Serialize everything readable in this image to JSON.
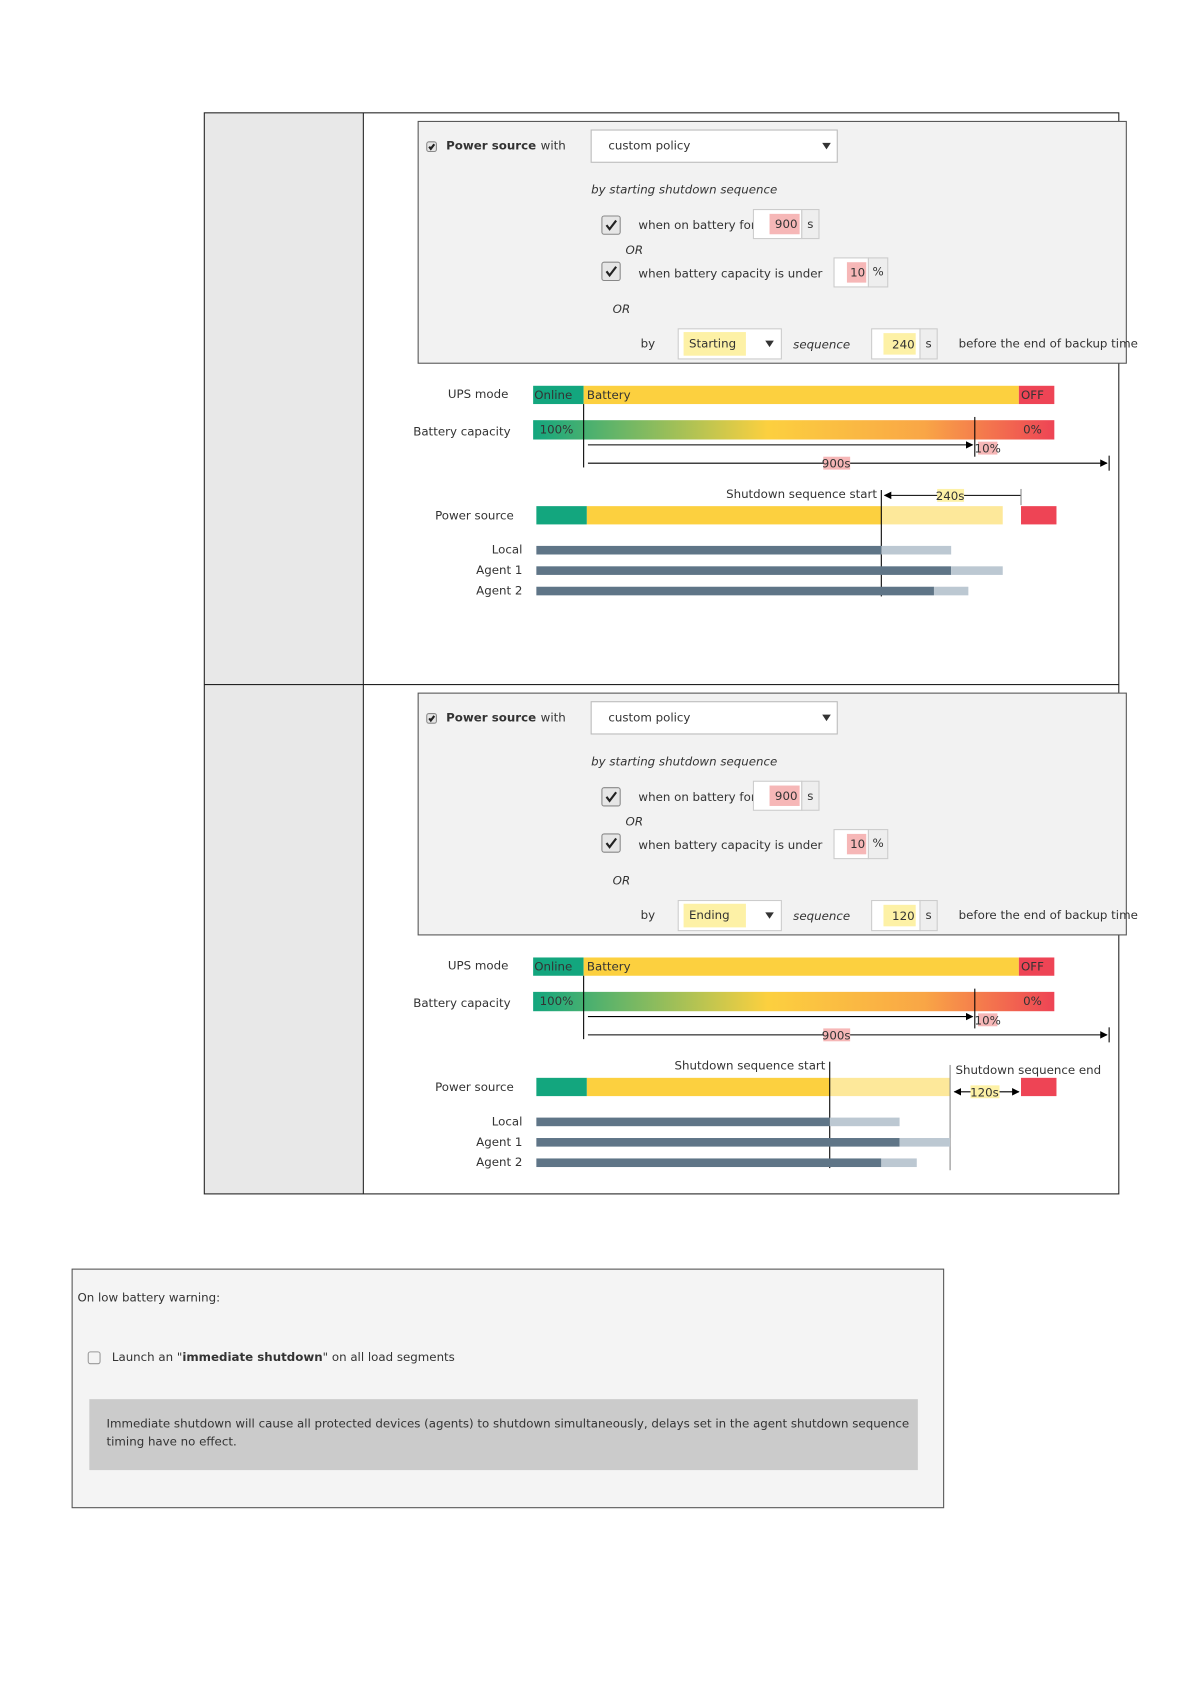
{
  "panels": [
    {
      "policy": {
        "source_label": "Power source",
        "with": "with",
        "policy": "custom policy",
        "subtitle": "by starting shutdown sequence",
        "battery_label": "when on battery for",
        "battery_time": 900,
        "battery_unit": "s",
        "or1": "OR",
        "capacity_label": "when battery capacity  is under",
        "capacity": 10,
        "capacity_unit": "%",
        "or2": "OR",
        "by": "by",
        "mode": "Starting",
        "sequence": "sequence",
        "offset": 240,
        "offset_unit": "s",
        "suffix": "before the end of backup time"
      },
      "diagram": {
        "ups_label": "UPS mode",
        "online": "Online",
        "battery": "Battery",
        "off": "OFF",
        "capacity_label": "Battery capacity",
        "full": "100%",
        "empty": "0%",
        "threshold": "10%",
        "duration": "900s",
        "start_label": "Shutdown sequence start",
        "offset_label": "240s",
        "power_label": "Power source",
        "agents": [
          "Local",
          "Agent 1",
          "Agent 2"
        ]
      }
    },
    {
      "policy": {
        "source_label": "Power source",
        "with": "with",
        "policy": "custom policy",
        "subtitle": "by starting shutdown sequence",
        "battery_label": "when on battery for",
        "battery_time": 900,
        "battery_unit": "s",
        "or1": "OR",
        "capacity_label": "when battery capacity  is under",
        "capacity": 10,
        "capacity_unit": "%",
        "or2": "OR",
        "by": "by",
        "mode": "Ending",
        "sequence": "sequence",
        "offset": 120,
        "offset_unit": "s",
        "suffix": "before the end of backup time"
      },
      "diagram": {
        "ups_label": "UPS mode",
        "online": "Online",
        "battery": "Battery",
        "off": "OFF",
        "capacity_label": "Battery capacity",
        "full": "100%",
        "empty": "0%",
        "threshold": "10%",
        "duration": "900s",
        "start_label": "Shutdown sequence start",
        "end_label": "Shutdown sequence end",
        "offset_label": "120s",
        "power_label": "Power source",
        "agents": [
          "Local",
          "Agent 1",
          "Agent 2"
        ]
      }
    }
  ],
  "warning": {
    "title": "On low battery warning:",
    "launch_prefix": "Launch an \"",
    "launch_bold": "immediate shutdown",
    "launch_suffix": "\" on all load segments",
    "note": [
      "Immediate shutdown will cause all protected devices (agents) to shutdown simultaneously, delays set in the agent shutdown sequence",
      "timing have no effect."
    ]
  }
}
